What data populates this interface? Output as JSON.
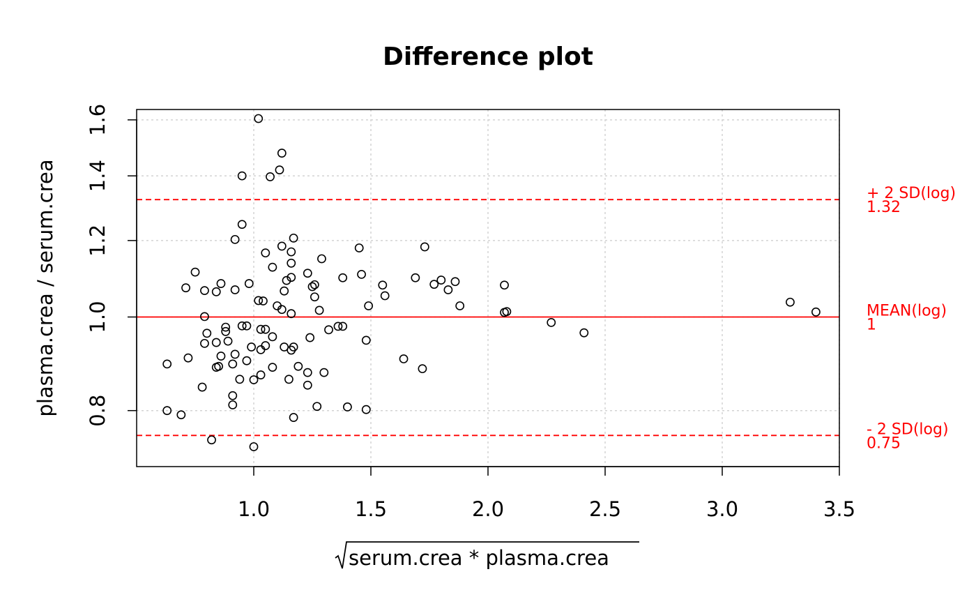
{
  "chart_data": {
    "type": "scatter",
    "title": "Difference plot",
    "xlabel": "serum.crea * plasma.crea",
    "xlabel_has_sqrt": true,
    "ylabel": "plasma.crea / serum.crea",
    "xlim": [
      0.5,
      3.5
    ],
    "ylim": [
      0.7,
      1.64
    ],
    "y_scale": "log",
    "grid": true,
    "x_ticks": [
      1.0,
      1.5,
      2.0,
      2.5,
      3.0,
      3.5
    ],
    "x_tick_labels": [
      "1.0",
      "1.5",
      "2.0",
      "2.5",
      "3.0",
      "3.5"
    ],
    "y_ticks": [
      0.8,
      1.0,
      1.2,
      1.4,
      1.6
    ],
    "y_tick_labels": [
      "0.8",
      "1.0",
      "1.2",
      "1.4",
      "1.6"
    ],
    "reference_lines": [
      {
        "name": "+ 2 SD(log)",
        "value_label": "1.32",
        "value": 1.323,
        "style": "dashed",
        "color": "#ff0000"
      },
      {
        "name": "MEAN(log)",
        "value_label": "1",
        "value": 1.0,
        "style": "solid",
        "color": "#ff0000"
      },
      {
        "name": "- 2 SD(log)",
        "value_label": "0.75",
        "value": 0.754,
        "style": "dashed",
        "color": "#ff0000"
      }
    ],
    "points": [
      [
        1.02,
        1.605
      ],
      [
        1.12,
        1.478
      ],
      [
        1.11,
        1.42
      ],
      [
        0.95,
        1.4
      ],
      [
        1.07,
        1.397
      ],
      [
        0.95,
        1.247
      ],
      [
        1.17,
        1.207
      ],
      [
        0.92,
        1.203
      ],
      [
        1.12,
        1.184
      ],
      [
        1.45,
        1.179
      ],
      [
        1.73,
        1.182
      ],
      [
        1.05,
        1.165
      ],
      [
        1.16,
        1.168
      ],
      [
        1.29,
        1.149
      ],
      [
        1.16,
        1.137
      ],
      [
        1.08,
        1.126
      ],
      [
        0.75,
        1.113
      ],
      [
        1.23,
        1.11
      ],
      [
        1.46,
        1.107
      ],
      [
        1.38,
        1.098
      ],
      [
        1.69,
        1.098
      ],
      [
        1.16,
        1.099
      ],
      [
        1.14,
        1.091
      ],
      [
        1.8,
        1.092
      ],
      [
        1.86,
        1.088
      ],
      [
        1.77,
        1.081
      ],
      [
        2.07,
        1.079
      ],
      [
        1.55,
        1.079
      ],
      [
        0.86,
        1.083
      ],
      [
        0.98,
        1.083
      ],
      [
        1.25,
        1.075
      ],
      [
        1.26,
        1.08
      ],
      [
        0.71,
        1.072
      ],
      [
        0.79,
        1.065
      ],
      [
        0.84,
        1.062
      ],
      [
        0.92,
        1.067
      ],
      [
        1.13,
        1.064
      ],
      [
        1.83,
        1.067
      ],
      [
        1.56,
        1.052
      ],
      [
        1.26,
        1.049
      ],
      [
        1.02,
        1.04
      ],
      [
        1.04,
        1.039
      ],
      [
        3.29,
        1.036
      ],
      [
        1.1,
        1.027
      ],
      [
        1.49,
        1.027
      ],
      [
        1.88,
        1.027
      ],
      [
        1.12,
        1.018
      ],
      [
        1.28,
        1.016
      ],
      [
        2.08,
        1.013
      ],
      [
        2.07,
        1.011
      ],
      [
        1.16,
        1.008
      ],
      [
        3.4,
        1.012
      ],
      [
        0.79,
        1.001
      ],
      [
        2.27,
        0.987
      ],
      [
        0.88,
        0.976
      ],
      [
        0.95,
        0.979
      ],
      [
        0.97,
        0.979
      ],
      [
        1.36,
        0.978
      ],
      [
        1.38,
        0.978
      ],
      [
        1.03,
        0.971
      ],
      [
        1.05,
        0.971
      ],
      [
        1.32,
        0.97
      ],
      [
        0.88,
        0.966
      ],
      [
        2.41,
        0.963
      ],
      [
        0.8,
        0.962
      ],
      [
        1.08,
        0.954
      ],
      [
        1.24,
        0.952
      ],
      [
        0.89,
        0.944
      ],
      [
        0.84,
        0.941
      ],
      [
        1.48,
        0.946
      ],
      [
        0.79,
        0.939
      ],
      [
        1.05,
        0.934
      ],
      [
        1.13,
        0.931
      ],
      [
        1.17,
        0.931
      ],
      [
        0.99,
        0.931
      ],
      [
        1.03,
        0.925
      ],
      [
        1.16,
        0.924
      ],
      [
        0.92,
        0.915
      ],
      [
        0.86,
        0.911
      ],
      [
        0.72,
        0.907
      ],
      [
        1.64,
        0.905
      ],
      [
        0.97,
        0.901
      ],
      [
        0.91,
        0.894
      ],
      [
        0.63,
        0.894
      ],
      [
        1.19,
        0.889
      ],
      [
        1.08,
        0.887
      ],
      [
        0.84,
        0.887
      ],
      [
        0.85,
        0.889
      ],
      [
        1.72,
        0.884
      ],
      [
        1.3,
        0.876
      ],
      [
        1.23,
        0.876
      ],
      [
        1.03,
        0.871
      ],
      [
        0.94,
        0.862
      ],
      [
        1.15,
        0.862
      ],
      [
        1.0,
        0.861
      ],
      [
        1.23,
        0.85
      ],
      [
        0.78,
        0.846
      ],
      [
        0.91,
        0.829
      ],
      [
        0.91,
        0.811
      ],
      [
        1.27,
        0.808
      ],
      [
        1.4,
        0.807
      ],
      [
        1.48,
        0.802
      ],
      [
        0.63,
        0.8
      ],
      [
        0.69,
        0.792
      ],
      [
        1.17,
        0.787
      ],
      [
        0.82,
        0.746
      ],
      [
        1.0,
        0.734
      ]
    ]
  }
}
